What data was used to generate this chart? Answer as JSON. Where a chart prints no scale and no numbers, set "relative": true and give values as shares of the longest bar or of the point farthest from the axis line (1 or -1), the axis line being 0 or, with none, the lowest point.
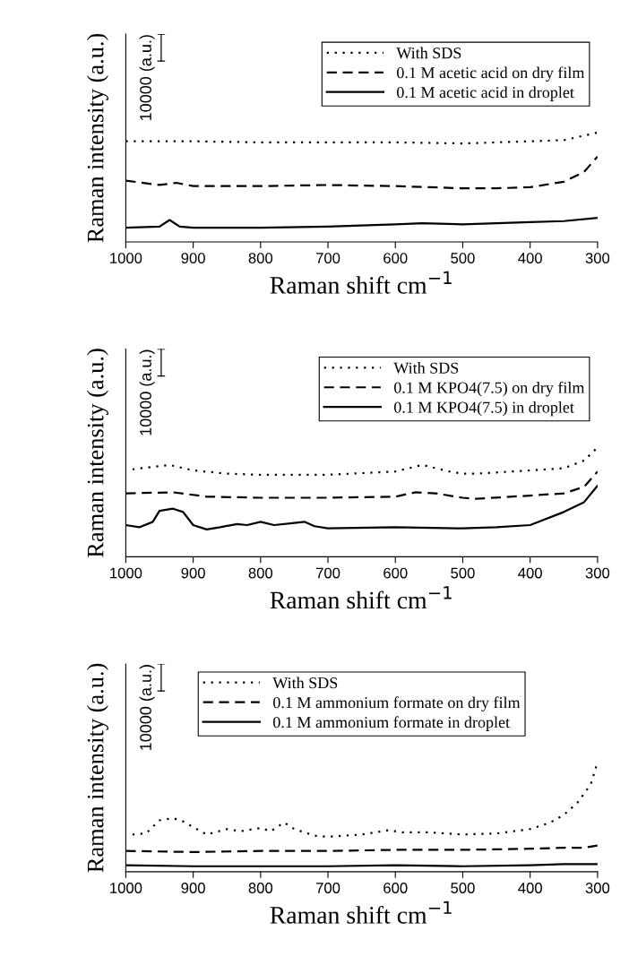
{
  "chart_data": [
    {
      "type": "line",
      "relative": true,
      "xlabel": "Raman shift cm$^{−1}$",
      "ylabel": "Raman intensity (a.u.)",
      "xlim": [
        1000,
        300
      ],
      "xticks": [
        1000,
        900,
        800,
        700,
        600,
        500,
        400,
        300
      ],
      "legend": "top right",
      "grid": false,
      "annotations": [
        "10000 (a.u.)"
      ],
      "series": [
        {
          "name": "With SDS",
          "color": "#000000",
          "line_style": "dotted",
          "x": [
            1000,
            900,
            800,
            700,
            600,
            500,
            400,
            350,
            300
          ],
          "values": [
            0.92,
            0.92,
            0.91,
            0.91,
            0.91,
            0.9,
            0.92,
            0.93,
            1
          ]
        },
        {
          "name": "0.1 M acetic acid on dry film",
          "color": "#000000",
          "line_style": "dashed",
          "x": [
            1000,
            950,
            925,
            900,
            800,
            700,
            600,
            500,
            450,
            400,
            350,
            320,
            300
          ],
          "values": [
            0.56,
            0.52,
            0.54,
            0.51,
            0.51,
            0.52,
            0.51,
            0.49,
            0.49,
            0.5,
            0.55,
            0.64,
            0.78
          ]
        },
        {
          "name": "0.1 M acetic acid in droplet",
          "color": "#000000",
          "line_style": "solid",
          "x": [
            1000,
            950,
            935,
            920,
            900,
            800,
            700,
            600,
            560,
            500,
            400,
            350,
            300
          ],
          "values": [
            0.13,
            0.14,
            0.2,
            0.14,
            0.13,
            0.13,
            0.14,
            0.16,
            0.17,
            0.16,
            0.18,
            0.19,
            0.22
          ]
        }
      ]
    },
    {
      "type": "line",
      "relative": true,
      "xlabel": "Raman shift cm$^{−1}$",
      "ylabel": "Raman intensity (a.u.)",
      "xlim": [
        1000,
        300
      ],
      "xticks": [
        1000,
        900,
        800,
        700,
        600,
        500,
        400,
        300
      ],
      "legend": "top right",
      "grid": false,
      "annotations": [
        "10000 (a.u.)"
      ],
      "series": [
        {
          "name": "With SDS",
          "color": "#000000",
          "line_style": "dotted",
          "x": [
            990,
            935,
            900,
            850,
            800,
            700,
            600,
            560,
            520,
            500,
            480,
            400,
            350,
            320,
            300
          ],
          "values": [
            0.8,
            0.84,
            0.79,
            0.76,
            0.75,
            0.75,
            0.78,
            0.84,
            0.78,
            0.76,
            0.76,
            0.79,
            0.81,
            0.88,
            1
          ]
        },
        {
          "name": "0.1 M KPO4(7.5) on dry film",
          "color": "#000000",
          "line_style": "dashed",
          "x": [
            1000,
            930,
            880,
            800,
            700,
            600,
            570,
            540,
            500,
            480,
            400,
            350,
            320,
            300
          ],
          "values": [
            0.58,
            0.59,
            0.55,
            0.54,
            0.54,
            0.55,
            0.59,
            0.58,
            0.54,
            0.53,
            0.56,
            0.58,
            0.64,
            0.78
          ]
        },
        {
          "name": "0.1 M KPO4(7.5) in droplet",
          "color": "#000000",
          "line_style": "solid",
          "x": [
            1000,
            980,
            960,
            950,
            930,
            915,
            900,
            880,
            860,
            835,
            820,
            800,
            780,
            750,
            735,
            720,
            700,
            600,
            500,
            450,
            400,
            350,
            320,
            300
          ],
          "values": [
            0.29,
            0.27,
            0.32,
            0.42,
            0.44,
            0.41,
            0.29,
            0.25,
            0.27,
            0.3,
            0.29,
            0.32,
            0.29,
            0.31,
            0.32,
            0.28,
            0.26,
            0.27,
            0.26,
            0.27,
            0.29,
            0.41,
            0.5,
            0.65
          ]
        }
      ]
    },
    {
      "type": "line",
      "relative": true,
      "xlabel": "Raman shift cm$^{−1}$",
      "ylabel": "Raman intensity (a.u.)",
      "xlim": [
        1000,
        300
      ],
      "xticks": [
        1000,
        900,
        800,
        700,
        600,
        500,
        400,
        300
      ],
      "legend": "top",
      "grid": false,
      "annotations": [
        "10000 (a.u.)"
      ],
      "series": [
        {
          "name": "With SDS",
          "color": "#000000",
          "line_style": "dotted",
          "x": [
            990,
            970,
            950,
            930,
            915,
            880,
            850,
            830,
            800,
            785,
            765,
            750,
            720,
            700,
            650,
            610,
            590,
            550,
            500,
            450,
            400,
            370,
            350,
            330,
            310,
            300
          ],
          "values": [
            0.34,
            0.35,
            0.47,
            0.49,
            0.46,
            0.34,
            0.39,
            0.37,
            0.4,
            0.37,
            0.45,
            0.39,
            0.33,
            0.32,
            0.34,
            0.38,
            0.36,
            0.36,
            0.34,
            0.35,
            0.39,
            0.45,
            0.52,
            0.63,
            0.8,
            1
          ]
        },
        {
          "name": "0.1 M ammonium formate on dry film",
          "color": "#000000",
          "line_style": "dashed",
          "x": [
            1000,
            900,
            800,
            700,
            600,
            500,
            400,
            350,
            320,
            300
          ],
          "values": [
            0.19,
            0.18,
            0.19,
            0.19,
            0.2,
            0.2,
            0.21,
            0.22,
            0.22,
            0.24
          ]
        },
        {
          "name": "0.1 M ammonium formate in droplet",
          "color": "#000000",
          "line_style": "solid",
          "x": [
            1000,
            900,
            800,
            700,
            600,
            500,
            400,
            350,
            300
          ],
          "values": [
            0.06,
            0.05,
            0.05,
            0.05,
            0.06,
            0.05,
            0.06,
            0.07,
            0.07
          ]
        }
      ]
    }
  ]
}
